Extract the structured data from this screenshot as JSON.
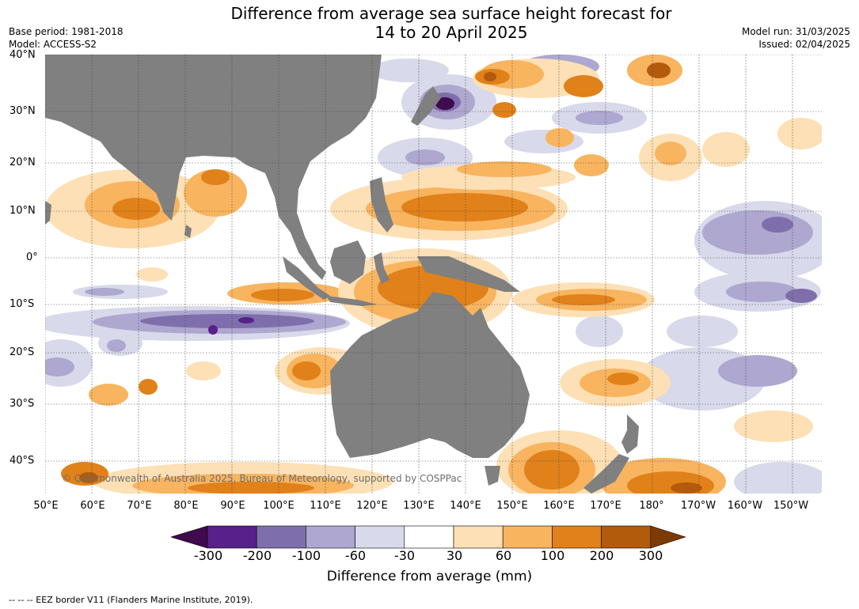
{
  "title": {
    "line1": "Difference from average sea surface height forecast for",
    "line2": "14 to 20 April 2025"
  },
  "meta": {
    "base_period": "Base period: 1981-2018",
    "model": "Model: ACCESS-S2",
    "model_run": "Model run: 31/03/2025",
    "issued": "Issued: 02/04/2025"
  },
  "lat_labels": [
    "40°N",
    "30°N",
    "20°N",
    "10°N",
    "0°",
    "10°S",
    "20°S",
    "30°S",
    "40°S"
  ],
  "lon_labels": [
    "50°E",
    "60°E",
    "70°E",
    "80°E",
    "90°E",
    "100°E",
    "110°E",
    "120°E",
    "130°E",
    "140°E",
    "150°E",
    "160°E",
    "170°E",
    "180°",
    "170°W",
    "160°W",
    "150°W"
  ],
  "copyright": "© Commonwealth of Australia 2025, Bureau of Meteorology, supported by COSPPac",
  "colorbar": {
    "ticks": [
      "-300",
      "-200",
      "-100",
      "-60",
      "-30",
      "30",
      "60",
      "100",
      "200",
      "300"
    ],
    "title": "Difference from average (mm)",
    "colors": [
      "#3f0a4e",
      "#58208a",
      "#7e6fac",
      "#aea7cf",
      "#d8d9ea",
      "#ffffff",
      "#fde0b5",
      "#f8b45f",
      "#e0811a",
      "#b25b0c",
      "#7c3b06"
    ]
  },
  "footer": "-- -- -- EEZ border V11 (Flanders Marine Institute, 2019).",
  "land_color": "#808080"
}
